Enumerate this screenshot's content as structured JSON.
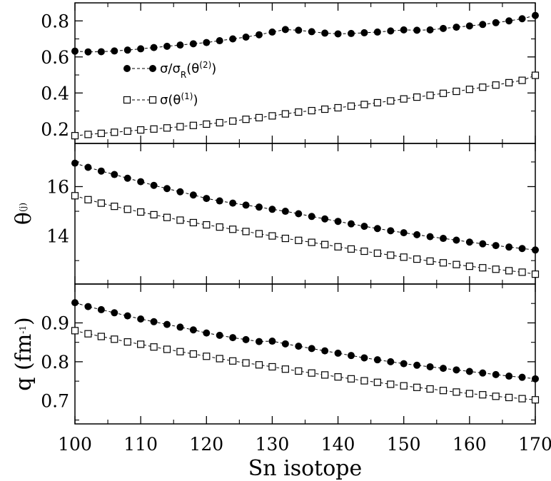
{
  "chart_data": {
    "type": "line",
    "shared_x_axis": {
      "label": "Sn isotope",
      "range": [
        100,
        170
      ],
      "ticks": [
        100,
        110,
        120,
        130,
        140,
        150,
        160,
        170
      ]
    },
    "x": [
      100,
      102,
      104,
      106,
      108,
      110,
      112,
      114,
      116,
      118,
      120,
      122,
      124,
      126,
      128,
      130,
      132,
      134,
      136,
      138,
      140,
      142,
      144,
      146,
      148,
      150,
      152,
      154,
      156,
      158,
      160,
      162,
      164,
      166,
      168,
      170
    ],
    "panels": [
      {
        "ylabel": "",
        "ylim": [
          0.12,
          0.9
        ],
        "yticks": [
          0.2,
          0.4,
          0.6,
          0.8
        ],
        "ytick_labels": [
          "0.2",
          "0.4",
          "0.6",
          "0.8"
        ],
        "legend": {
          "placement": "upper-left",
          "entries": [
            {
              "series": 0,
              "prefix": "σ/σ",
              "sub": "R",
              "mid": "(θ",
              "sup": "(2)",
              "suffix": ")"
            },
            {
              "series": 1,
              "prefix": "σ(θ",
              "sub": "",
              "mid": "",
              "sup": "(1)",
              "suffix": ")"
            }
          ]
        },
        "series": [
          {
            "marker": "filled-circle",
            "values": [
              0.632,
              0.628,
              0.629,
              0.633,
              0.638,
              0.645,
              0.652,
              0.659,
              0.666,
              0.673,
              0.68,
              0.69,
              0.7,
              0.71,
              0.723,
              0.738,
              0.752,
              0.748,
              0.74,
              0.732,
              0.728,
              0.73,
              0.734,
              0.738,
              0.744,
              0.75,
              0.748,
              0.75,
              0.758,
              0.765,
              0.772,
              0.78,
              0.79,
              0.8,
              0.812,
              0.83
            ]
          },
          {
            "marker": "open-square",
            "values": [
              0.163,
              0.17,
              0.176,
              0.182,
              0.188,
              0.195,
              0.2,
              0.206,
              0.213,
              0.22,
              0.227,
              0.235,
              0.244,
              0.254,
              0.263,
              0.273,
              0.284,
              0.294,
              0.302,
              0.31,
              0.318,
              0.327,
              0.336,
              0.346,
              0.356,
              0.367,
              0.377,
              0.387,
              0.398,
              0.409,
              0.42,
              0.432,
              0.444,
              0.457,
              0.47,
              0.498
            ]
          }
        ]
      },
      {
        "ylabel": "θ",
        "ylabel_sup": "(j)",
        "ylim": [
          12.05,
          17.75
        ],
        "yticks": [
          14,
          16
        ],
        "ytick_labels": [
          "14",
          "16"
        ],
        "series": [
          {
            "marker": "filled-circle",
            "values": [
              16.95,
              16.78,
              16.63,
              16.49,
              16.34,
              16.2,
              16.05,
              15.92,
              15.79,
              15.66,
              15.52,
              15.42,
              15.33,
              15.25,
              15.17,
              15.08,
              15.0,
              14.9,
              14.79,
              14.69,
              14.59,
              14.49,
              14.39,
              14.3,
              14.21,
              14.13,
              14.05,
              13.97,
              13.9,
              13.83,
              13.75,
              13.68,
              13.61,
              13.55,
              13.49,
              13.43
            ]
          },
          {
            "marker": "open-square",
            "values": [
              15.63,
              15.47,
              15.33,
              15.2,
              15.08,
              14.97,
              14.86,
              14.75,
              14.64,
              14.54,
              14.45,
              14.36,
              14.27,
              14.18,
              14.09,
              14.0,
              13.9,
              13.82,
              13.74,
              13.65,
              13.56,
              13.47,
              13.38,
              13.3,
              13.22,
              13.14,
              13.06,
              12.98,
              12.91,
              12.84,
              12.77,
              12.71,
              12.65,
              12.59,
              12.53,
              12.45
            ]
          }
        ]
      },
      {
        "ylabel": "q (fm",
        "ylabel_sup": "-1",
        "ylabel_suffix": ")",
        "ylim": [
          0.64,
          1.0
        ],
        "yticks": [
          0.7,
          0.8,
          0.9
        ],
        "ytick_labels": [
          "0.7",
          "0.8",
          "0.9"
        ],
        "series": [
          {
            "marker": "filled-circle",
            "values": [
              0.952,
              0.942,
              0.934,
              0.926,
              0.918,
              0.91,
              0.903,
              0.896,
              0.889,
              0.882,
              0.874,
              0.868,
              0.862,
              0.857,
              0.852,
              0.853,
              0.846,
              0.84,
              0.834,
              0.828,
              0.822,
              0.816,
              0.81,
              0.805,
              0.8,
              0.795,
              0.791,
              0.787,
              0.783,
              0.779,
              0.775,
              0.771,
              0.767,
              0.763,
              0.76,
              0.756
            ]
          },
          {
            "marker": "open-square",
            "values": [
              0.88,
              0.872,
              0.865,
              0.858,
              0.851,
              0.845,
              0.838,
              0.832,
              0.826,
              0.82,
              0.814,
              0.808,
              0.802,
              0.797,
              0.792,
              0.787,
              0.781,
              0.776,
              0.771,
              0.766,
              0.761,
              0.756,
              0.751,
              0.747,
              0.742,
              0.738,
              0.734,
              0.73,
              0.726,
              0.722,
              0.718,
              0.715,
              0.711,
              0.708,
              0.705,
              0.702
            ]
          }
        ]
      }
    ]
  }
}
